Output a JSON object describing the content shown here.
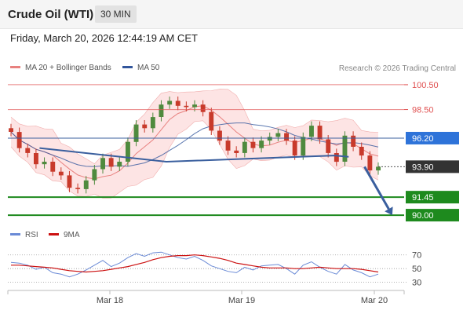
{
  "header": {
    "title": "Crude Oil (WTI)",
    "interval": "30 MIN",
    "datetime": "Friday, March 20, 2026 12:44:19 AM CET"
  },
  "credit": "Research © 2026 Trading Central",
  "colors": {
    "ma20": "#e8817f",
    "ma50": "#32569c",
    "bands_fill": "#fde4e4",
    "bull_candle": "#4f8a3e",
    "bear_candle": "#c83a2b",
    "resistance": "#e05050",
    "support": "#1e8a1e",
    "pivot": "#2e73d9",
    "current": "#333333",
    "trendline": "#3a5f9e",
    "rsi": "#6a8ad6",
    "rsi_ma": "#cc1111"
  },
  "chart_data": [
    {
      "type": "line",
      "panel": "price",
      "legend": [
        {
          "name": "MA 20 + Bollinger Bands",
          "color": "#e8817f"
        },
        {
          "name": "MA 50",
          "color": "#32569c"
        }
      ],
      "x_ticks": [
        "Mar 18",
        "Mar 19",
        "Mar 20"
      ],
      "ylim": [
        89.5,
        101
      ],
      "grid": false,
      "levels": [
        {
          "label": "100.50",
          "value": 100.5,
          "kind": "resistance"
        },
        {
          "label": "98.50",
          "value": 98.5,
          "kind": "resistance"
        },
        {
          "label": "96.20",
          "value": 96.2,
          "kind": "pivot"
        },
        {
          "label": "93.90",
          "value": 93.9,
          "kind": "current"
        },
        {
          "label": "91.45",
          "value": 91.45,
          "kind": "support"
        },
        {
          "label": "90.00",
          "value": 90.0,
          "kind": "support"
        }
      ],
      "trendline": [
        {
          "x": 0.08,
          "y": 95.4
        },
        {
          "x": 0.4,
          "y": 94.3
        },
        {
          "x": 0.825,
          "y": 94.8
        },
        {
          "x": 0.86,
          "y": 94.7
        }
      ],
      "forecast_arrow": [
        {
          "x": 0.9,
          "y": 93.9
        },
        {
          "x": 0.97,
          "y": 90.0
        }
      ],
      "close": [
        96.7,
        95.4,
        95.0,
        94.1,
        94.3,
        93.5,
        93.2,
        92.2,
        92.1,
        92.8,
        93.7,
        94.6,
        93.9,
        94.3,
        95.9,
        97.3,
        97.0,
        97.9,
        98.9,
        99.2,
        98.8,
        98.7,
        98.9,
        98.3,
        96.8,
        96.0,
        95.2,
        95.0,
        95.9,
        95.4,
        96.0,
        96.3,
        96.6,
        96.0,
        94.8,
        96.3,
        97.2,
        96.1,
        95.0,
        94.3,
        96.4,
        95.5,
        94.8,
        93.6,
        93.9
      ]
    },
    {
      "type": "line",
      "panel": "rsi",
      "legend": [
        {
          "name": "RSI",
          "color": "#6a8ad6"
        },
        {
          "name": "9MA",
          "color": "#cc1111"
        }
      ],
      "y_ticks": [
        "70",
        "50",
        "30"
      ],
      "ylim": [
        25,
        80
      ],
      "rsi": [
        59,
        58,
        55,
        49,
        52,
        44,
        42,
        38,
        42,
        48,
        55,
        62,
        53,
        58,
        66,
        72,
        68,
        73,
        74,
        70,
        66,
        64,
        68,
        62,
        54,
        50,
        46,
        44,
        52,
        48,
        54,
        55,
        56,
        50,
        42,
        55,
        60,
        52,
        46,
        42,
        56,
        48,
        44,
        38,
        42
      ],
      "ma9": [
        55,
        55,
        54,
        53,
        52,
        51,
        49,
        47,
        46,
        45,
        46,
        47,
        49,
        51,
        53,
        56,
        59,
        63,
        66,
        68,
        69,
        69,
        70,
        69,
        67,
        65,
        62,
        58,
        56,
        54,
        52,
        51,
        51,
        51,
        50,
        50,
        51,
        52,
        51,
        50,
        50,
        50,
        49,
        47,
        45
      ]
    }
  ]
}
